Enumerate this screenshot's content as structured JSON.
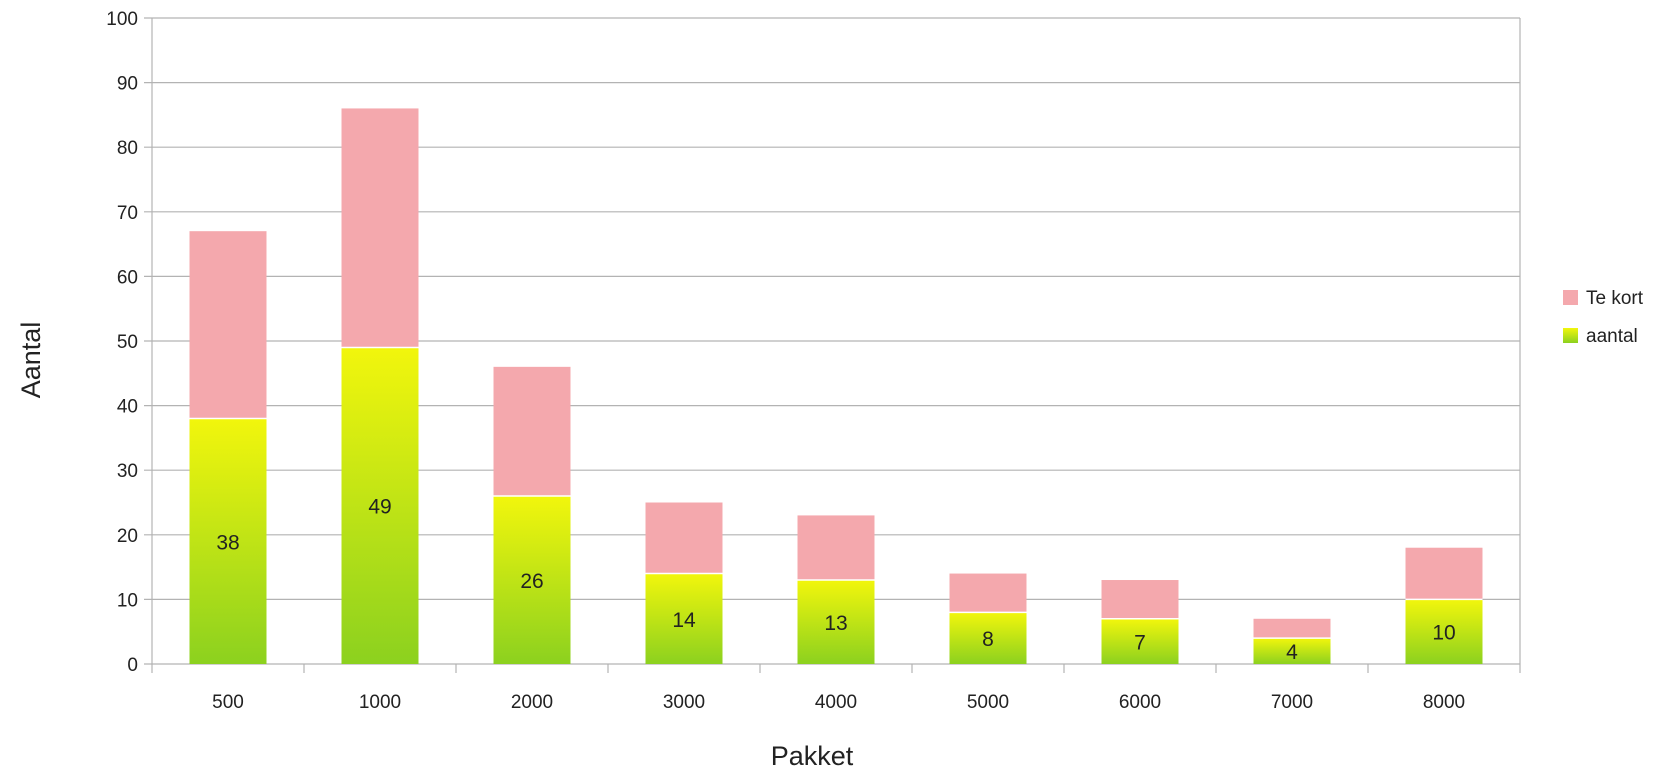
{
  "chart_data": {
    "type": "bar",
    "stacked": true,
    "categories": [
      "500",
      "1000",
      "2000",
      "3000",
      "4000",
      "5000",
      "6000",
      "7000",
      "8000"
    ],
    "series": [
      {
        "name": "aantal",
        "values": [
          38,
          49,
          26,
          14,
          13,
          8,
          7,
          4,
          10
        ],
        "color": "#9fd51d",
        "gradient_top": "#f2f60c",
        "gradient_bottom": "#8cd11f",
        "data_labels": true
      },
      {
        "name": "Te kort",
        "values": [
          29,
          37,
          20,
          11,
          10,
          6,
          6,
          3,
          8
        ],
        "color": "#f4a8ad"
      }
    ],
    "xlabel": "Pakket",
    "ylabel": "Aantal",
    "ylim": [
      0,
      100
    ],
    "yticks": [
      0,
      10,
      20,
      30,
      40,
      50,
      60,
      70,
      80,
      90,
      100
    ],
    "grid": true,
    "legend_position": "right",
    "legend": [
      {
        "name": "Te kort",
        "color": "#f4a8ad"
      },
      {
        "name": "aantal",
        "color": "#b2e11a"
      }
    ]
  }
}
